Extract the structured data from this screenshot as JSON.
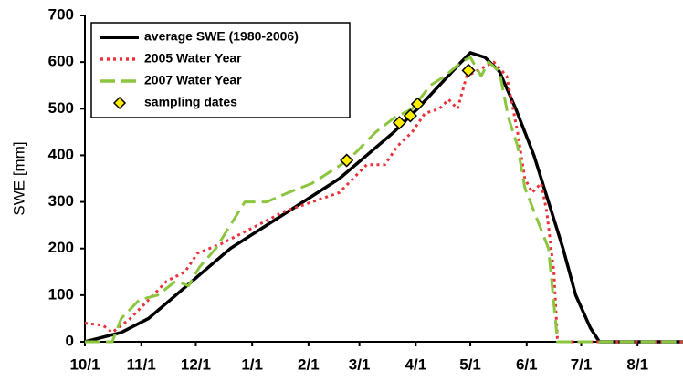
{
  "chart_data": {
    "type": "line",
    "ylabel": "SWE [mm]",
    "xlim": [
      0,
      329
    ],
    "ylim": [
      0,
      700
    ],
    "xticks": [
      {
        "value": 0,
        "label": "10/1"
      },
      {
        "value": 31,
        "label": "11/1"
      },
      {
        "value": 61,
        "label": "12/1"
      },
      {
        "value": 92,
        "label": "1/1"
      },
      {
        "value": 123,
        "label": "2/1"
      },
      {
        "value": 151,
        "label": "3/1"
      },
      {
        "value": 182,
        "label": "4/1"
      },
      {
        "value": 212,
        "label": "5/1"
      },
      {
        "value": 243,
        "label": "6/1"
      },
      {
        "value": 273,
        "label": "7/1"
      },
      {
        "value": 304,
        "label": "8/1"
      }
    ],
    "yticks": [
      0,
      100,
      200,
      300,
      400,
      500,
      600,
      700
    ],
    "legend": "upper left",
    "series": [
      {
        "name": "average SWE (1980-2006)",
        "color": "#000000",
        "kind": "line",
        "dash": "solid",
        "x": [
          0,
          10,
          20,
          35,
          50,
          65,
          80,
          100,
          120,
          140,
          155,
          170,
          183,
          195,
          207,
          212,
          220,
          228,
          237,
          247,
          255,
          263,
          270,
          278,
          283,
          329
        ],
        "values": [
          0,
          10,
          20,
          50,
          100,
          150,
          200,
          250,
          300,
          350,
          400,
          450,
          500,
          550,
          600,
          620,
          610,
          580,
          500,
          400,
          300,
          200,
          100,
          30,
          0,
          0
        ]
      },
      {
        "name": "2005 Water Year",
        "color": "#e8333a",
        "kind": "line",
        "dash": "dotted",
        "x": [
          0,
          10,
          15,
          25,
          35,
          45,
          55,
          62,
          75,
          85,
          100,
          110,
          125,
          140,
          145,
          155,
          165,
          172,
          180,
          187,
          195,
          200,
          205,
          210,
          215,
          225,
          232,
          238,
          242,
          246,
          251,
          254,
          258,
          260,
          329
        ],
        "values": [
          40,
          35,
          20,
          50,
          90,
          130,
          150,
          190,
          210,
          230,
          260,
          280,
          300,
          320,
          340,
          380,
          380,
          420,
          450,
          490,
          500,
          520,
          500,
          570,
          580,
          600,
          570,
          450,
          350,
          320,
          340,
          280,
          150,
          0,
          0
        ]
      },
      {
        "name": "2007 Water Year",
        "color": "#8cc63f",
        "kind": "line",
        "dash": "dashed",
        "x": [
          0,
          15,
          20,
          30,
          40,
          50,
          57,
          63,
          72,
          80,
          88,
          100,
          112,
          125,
          145,
          160,
          170,
          180,
          190,
          198,
          207,
          212,
          218,
          222,
          228,
          233,
          238,
          242,
          255,
          260,
          329
        ],
        "values": [
          0,
          0,
          50,
          90,
          100,
          130,
          120,
          160,
          200,
          250,
          300,
          300,
          320,
          340,
          390,
          450,
          480,
          500,
          550,
          570,
          600,
          610,
          570,
          600,
          580,
          480,
          420,
          330,
          200,
          0,
          0
        ]
      },
      {
        "name": "sampling dates",
        "color": "#ffee00",
        "kind": "marker",
        "x": [
          144,
          173,
          179,
          183,
          211
        ],
        "values": [
          389,
          470,
          485,
          510,
          582
        ]
      }
    ]
  }
}
